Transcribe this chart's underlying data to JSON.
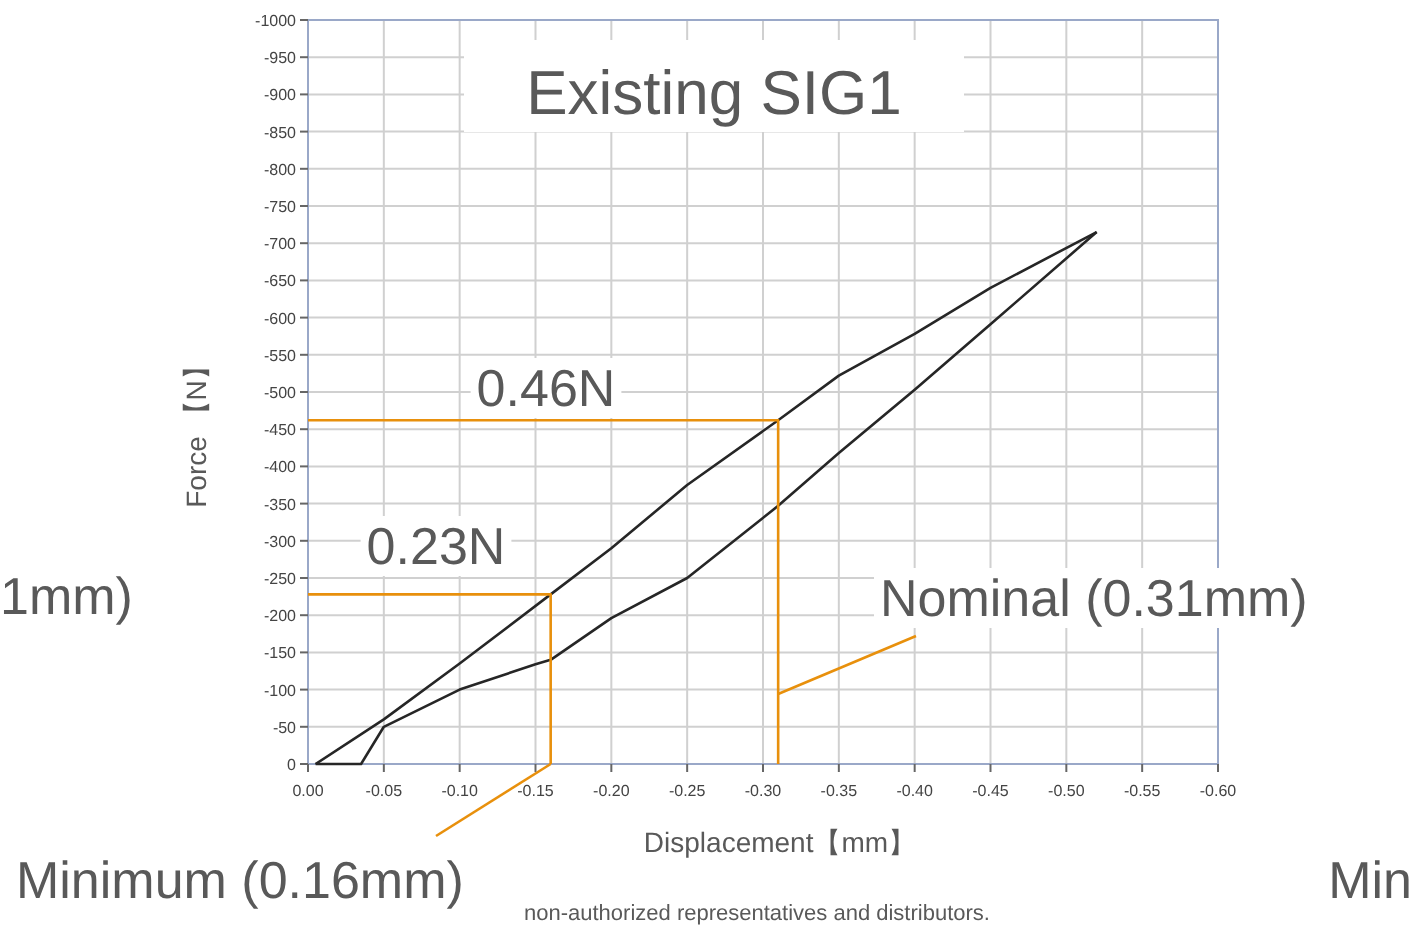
{
  "chart_data": {
    "type": "line",
    "title": "Existing SIG1",
    "xlabel": "Displacement【mm】",
    "ylabel": "Force 【N】",
    "xlim": [
      0,
      -0.6
    ],
    "ylim": [
      0,
      -1000
    ],
    "xticks": [
      {
        "value": 0,
        "label": "0.00"
      },
      {
        "value": -0.05,
        "label": "-0.05"
      },
      {
        "value": -0.1,
        "label": "-0.10"
      },
      {
        "value": -0.15,
        "label": "-0.15"
      },
      {
        "value": -0.2,
        "label": "-0.20"
      },
      {
        "value": -0.25,
        "label": "-0.25"
      },
      {
        "value": -0.3,
        "label": "-0.30"
      },
      {
        "value": -0.35,
        "label": "-0.35"
      },
      {
        "value": -0.4,
        "label": "-0.40"
      },
      {
        "value": -0.45,
        "label": "-0.45"
      },
      {
        "value": -0.5,
        "label": "-0.50"
      },
      {
        "value": -0.55,
        "label": "-0.55"
      },
      {
        "value": -0.6,
        "label": "-0.60"
      }
    ],
    "yticks": [
      0,
      -50,
      -100,
      -150,
      -200,
      -250,
      -300,
      -350,
      -400,
      -450,
      -500,
      -550,
      -600,
      -650,
      -700,
      -750,
      -800,
      -850,
      -900,
      -950,
      -1000
    ],
    "grid": true,
    "marker": "none",
    "line_style": "solid",
    "series": [
      {
        "color": "#262626",
        "x": [
          -0.005,
          -0.05,
          -0.1,
          -0.16,
          -0.2,
          -0.25,
          -0.31,
          -0.35,
          -0.4,
          -0.45,
          -0.52
        ],
        "values": [
          0,
          -60,
          -135,
          -228,
          -290,
          -375,
          -462,
          -522,
          -578,
          -640,
          -715
        ]
      },
      {
        "color": "#262626",
        "x": [
          -0.52,
          -0.45,
          -0.4,
          -0.35,
          -0.31,
          -0.25,
          -0.2,
          -0.16,
          -0.15,
          -0.1,
          -0.05,
          -0.035,
          -0.005
        ],
        "values": [
          -715,
          -591,
          -503,
          -418,
          -347,
          -250,
          -196,
          -140,
          -134,
          -100,
          -50,
          0,
          0
        ]
      },
      {
        "color": "#e8900c",
        "x": [
          0,
          -0.31,
          -0.31
        ],
        "values": [
          -462,
          -462,
          0
        ]
      },
      {
        "color": "#e8900c",
        "x": [
          0,
          -0.16,
          -0.16
        ],
        "values": [
          -228,
          -228,
          0
        ]
      }
    ],
    "annotations": [
      "0.46N",
      "0.23N",
      {
        "text": "Nominal (0.31mm)",
        "x": -0.31,
        "y": -94
      },
      {
        "text": "Minimum (0.16mm)",
        "x": -0.16,
        "y": 0
      },
      "1mm)",
      "Min",
      "non-authorized representatives and distributors."
    ]
  }
}
